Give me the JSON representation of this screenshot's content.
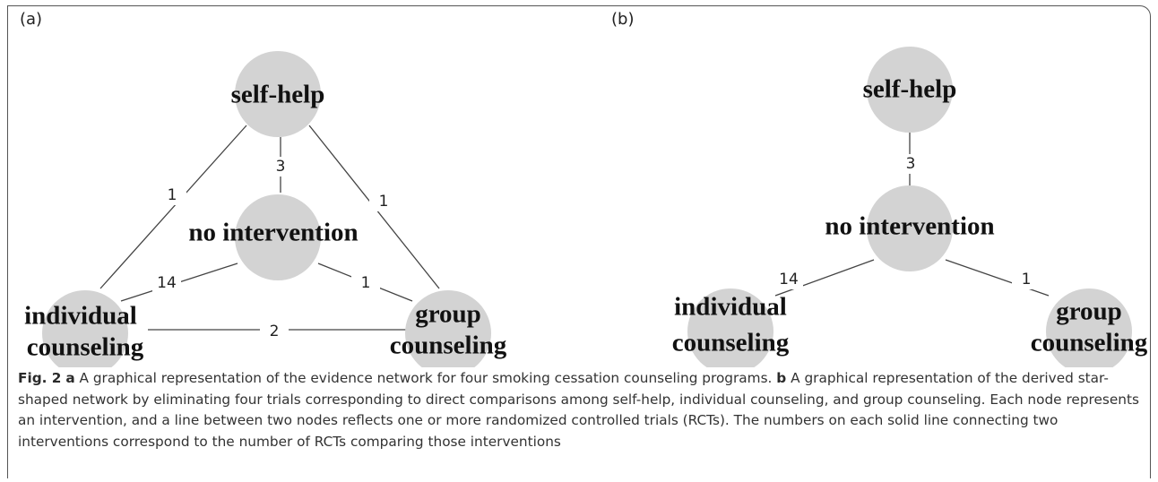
{
  "panels": [
    {
      "label": "(a)",
      "nodes": [
        {
          "label": [
            "self-help"
          ]
        },
        {
          "label": [
            "no intervention"
          ]
        },
        {
          "label": [
            "individual",
            "counseling"
          ]
        },
        {
          "label": [
            "group",
            "counseling"
          ]
        }
      ],
      "edges": [
        {
          "label": "1"
        },
        {
          "label": "1"
        },
        {
          "label": "3"
        },
        {
          "label": "14"
        },
        {
          "label": "1"
        },
        {
          "label": "2"
        }
      ]
    },
    {
      "label": "(b)",
      "nodes": [
        {
          "label": [
            "self-help"
          ]
        },
        {
          "label": [
            "no intervention"
          ]
        },
        {
          "label": [
            "individual",
            "counseling"
          ]
        },
        {
          "label": [
            "group",
            "counseling"
          ]
        }
      ],
      "edges": [
        {
          "label": "3"
        },
        {
          "label": "14"
        },
        {
          "label": "1"
        }
      ]
    }
  ],
  "caption": {
    "figure": "Fig. 2",
    "parts": [
      {
        "key": "a",
        "text": "A graphical representation of the evidence network for four smoking cessation counseling programs."
      },
      {
        "key": "b",
        "text": "A graphical representation of the derived star-shaped network by eliminating four trials corresponding to direct comparisons among self-help, individual counseling, and group counseling. Each node represents an intervention, and a line between two nodes reflects one or more randomized controlled trials (RCTs). The numbers on each solid line connecting two interventions correspond to the number of RCTs comparing those interventions"
      }
    ]
  }
}
